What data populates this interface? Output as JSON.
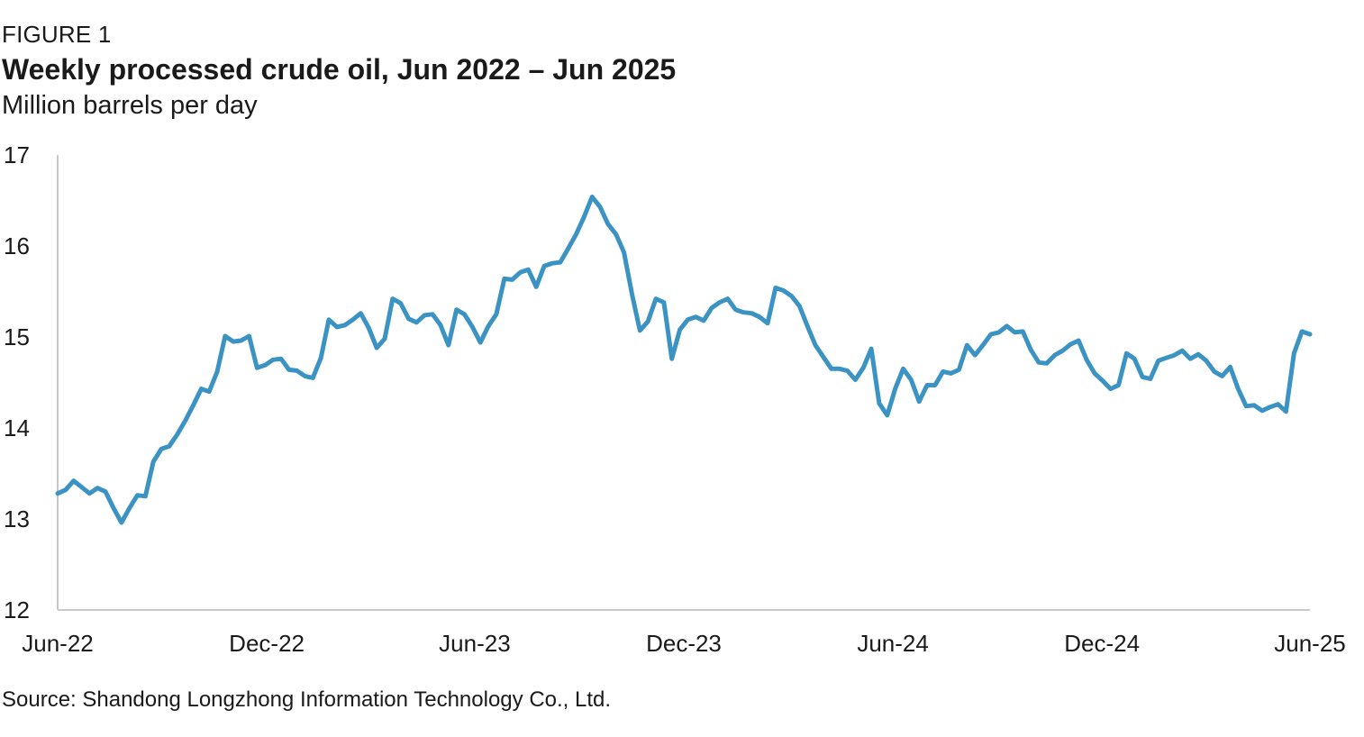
{
  "figure_label": "FIGURE 1",
  "title": "Weekly processed crude oil, Jun 2022 – Jun 2025",
  "subtitle": "Million barrels per day",
  "source": "Source: Shandong Longzhong Information Technology Co., Ltd.",
  "colors": {
    "series": "#3b93c3",
    "axis": "#c8c8c8",
    "text": "#1a1a1a"
  },
  "chart_data": {
    "type": "line",
    "title": "Weekly processed crude oil, Jun 2022 – Jun 2025",
    "ylabel": "Million barrels per day",
    "xlabel": "",
    "ylim": [
      12,
      17
    ],
    "yticks": [
      12,
      13,
      14,
      15,
      16,
      17
    ],
    "xlim": [
      "2022-06-01",
      "2025-06-01"
    ],
    "xticks": [
      {
        "date": "2022-06-01",
        "label": "Jun-22"
      },
      {
        "date": "2022-12-01",
        "label": "Dec-22"
      },
      {
        "date": "2023-06-01",
        "label": "Jun-23"
      },
      {
        "date": "2023-12-01",
        "label": "Dec-23"
      },
      {
        "date": "2024-06-01",
        "label": "Jun-24"
      },
      {
        "date": "2024-12-01",
        "label": "Dec-24"
      },
      {
        "date": "2025-06-01",
        "label": "Jun-25"
      }
    ],
    "grid": false,
    "legend": "none",
    "series": [
      {
        "values": [
          13.28,
          13.32,
          13.42,
          13.35,
          13.28,
          13.34,
          13.3,
          13.12,
          12.96,
          13.12,
          13.26,
          13.25,
          13.63,
          13.77,
          13.8,
          13.93,
          14.08,
          14.25,
          14.43,
          14.4,
          14.62,
          15.01,
          14.95,
          14.96,
          15.01,
          14.66,
          14.69,
          14.75,
          14.76,
          14.64,
          14.63,
          14.57,
          14.55,
          14.77,
          15.19,
          15.11,
          15.13,
          15.19,
          15.26,
          15.1,
          14.88,
          14.98,
          15.42,
          15.37,
          15.2,
          15.16,
          15.24,
          15.25,
          15.13,
          14.91,
          15.3,
          15.25,
          15.11,
          14.94,
          15.12,
          15.25,
          15.64,
          15.63,
          15.71,
          15.74,
          15.55,
          15.78,
          15.81,
          15.82,
          15.97,
          16.13,
          16.32,
          16.54,
          16.43,
          16.24,
          16.13,
          15.93,
          15.47,
          15.07,
          15.17,
          15.42,
          15.38,
          14.76,
          15.08,
          15.19,
          15.22,
          15.18,
          15.32,
          15.38,
          15.42,
          15.3,
          15.27,
          15.26,
          15.22,
          15.15,
          15.54,
          15.51,
          15.45,
          15.34,
          15.12,
          14.91,
          14.78,
          14.65,
          14.65,
          14.63,
          14.53,
          14.66,
          14.87,
          14.27,
          14.14,
          14.43,
          14.65,
          14.53,
          14.29,
          14.47,
          14.47,
          14.62,
          14.6,
          14.64,
          14.91,
          14.8,
          14.91,
          15.03,
          15.05,
          15.12,
          15.05,
          15.06,
          14.86,
          14.72,
          14.71,
          14.8,
          14.85,
          14.92,
          14.96,
          14.75,
          14.6,
          14.52,
          14.43,
          14.47,
          14.82,
          14.76,
          14.56,
          14.54,
          14.74,
          14.77,
          14.8,
          14.85,
          14.76,
          14.81,
          14.74,
          14.62,
          14.57,
          14.67,
          14.43,
          14.24,
          14.25,
          14.19,
          14.23,
          14.26,
          14.18,
          14.82,
          15.06,
          15.03
        ]
      }
    ]
  }
}
